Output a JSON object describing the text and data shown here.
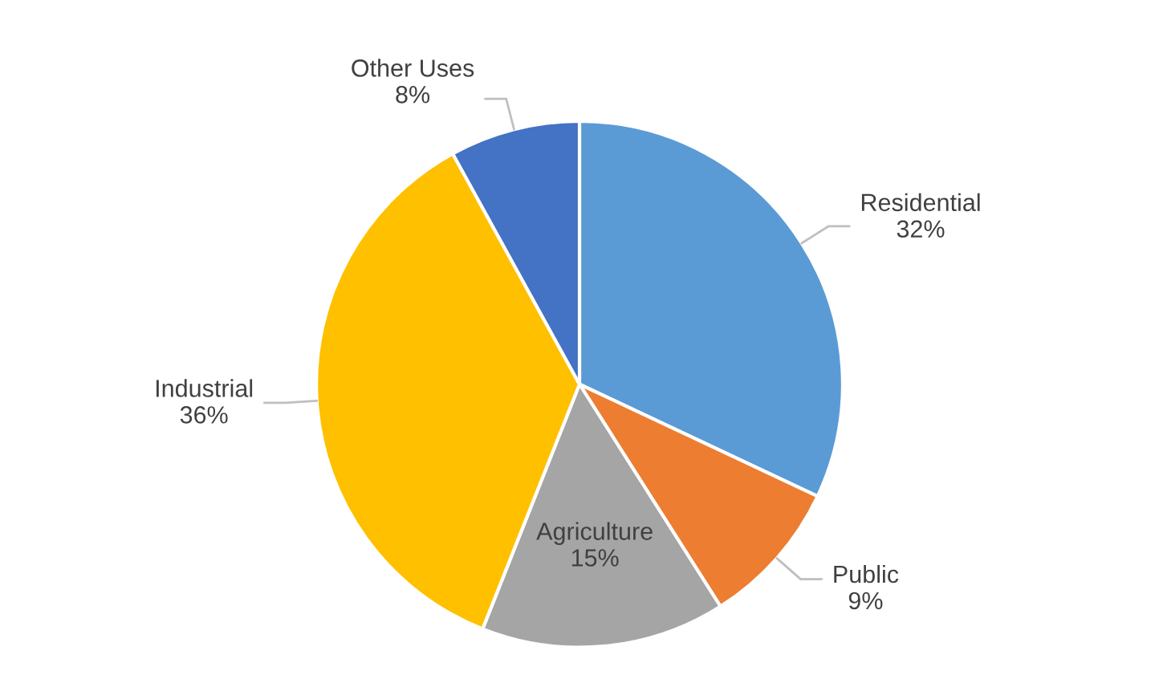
{
  "chart_data": {
    "type": "pie",
    "categories": [
      "Residential",
      "Public",
      "Agriculture",
      "Industrial",
      "Other Uses"
    ],
    "values": [
      32,
      9,
      15,
      36,
      8
    ],
    "value_labels": [
      "32%",
      "9%",
      "15%",
      "36%",
      "8%"
    ],
    "colors": [
      "#5b9bd5",
      "#ed7d31",
      "#a5a5a5",
      "#ffc000",
      "#4472c4"
    ],
    "legend": false
  }
}
